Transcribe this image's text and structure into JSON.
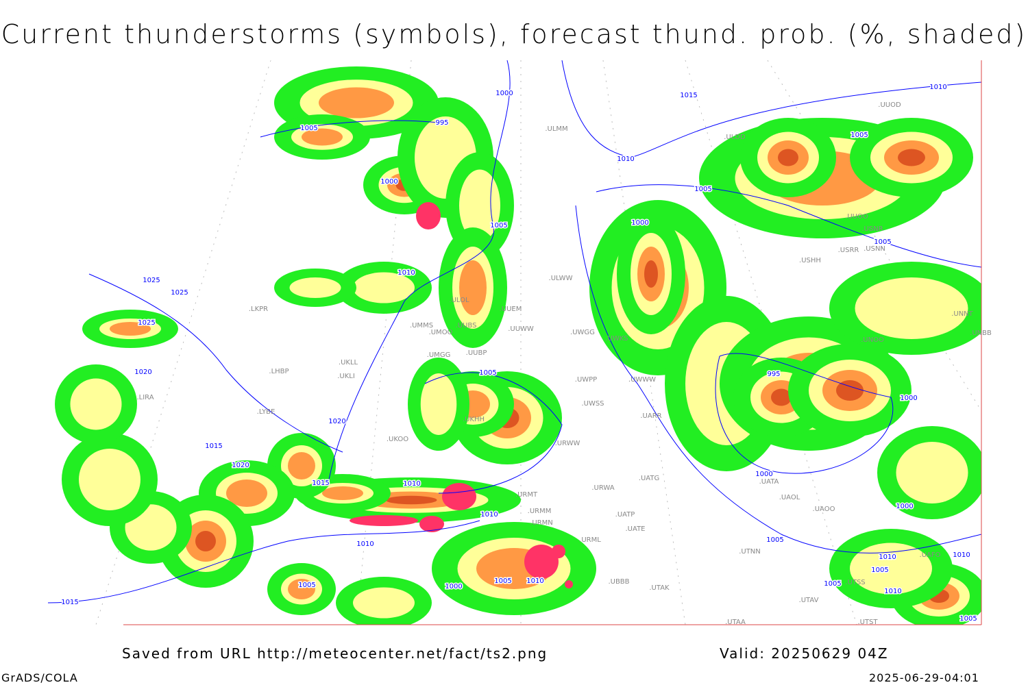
{
  "title": "Current thunderstorms (symbols), forecast thund. prob. (%, shaded)",
  "footer": {
    "source": "Saved from URL http://meteocenter.net/fact/ts2.png",
    "valid": "Valid: 20250629 04Z",
    "software": "GrADS/COLA",
    "timestamp": "2025-06-29-04:01"
  },
  "colors": {
    "prob_low": "#22ee22",
    "prob_mid": "#ffff99",
    "prob_high": "#ff9944",
    "prob_very_high": "#dd5522",
    "current_thunderstorm": "#ff3366",
    "isobar": "#0000ff",
    "coastline": "#999999"
  },
  "isobar_labels": [
    "1000",
    "1015",
    "1010",
    "995",
    "1005",
    "1010",
    "1005",
    "1000",
    "1005",
    "1000",
    "1005",
    "1005",
    "1010",
    "1025",
    "1025",
    "1025",
    "1020",
    "1005",
    "995",
    "1000",
    "1020",
    "1015",
    "1020",
    "1000",
    "1015",
    "1010",
    "1000",
    "1010",
    "1005",
    "1010",
    "1010",
    "1010",
    "1005",
    "1005",
    "1000",
    "1005",
    "1010",
    "1005",
    "1010",
    "1015",
    "1005"
  ],
  "stations": [
    "ULMM",
    "ULDD",
    "UUOD",
    "ULOL",
    "UUEM",
    "UUWW",
    "UMMS",
    "UMOO",
    "UUBS",
    "UMGG",
    "UUBP",
    "UWGG",
    "UWPP",
    "UWKS",
    "UWWW",
    "UWSS",
    "UARR",
    "URWW",
    "URWA",
    "UATG",
    "UATA",
    "UAOL",
    "UAOO",
    "UATP",
    "UATE",
    "URML",
    "UTNN",
    "UBBB",
    "UTAK",
    "UTAA",
    "URMT",
    "URMM",
    "URMN",
    "LKPR",
    "UKLL",
    "UKLI",
    "LHBP",
    "LIRA",
    "LYBE",
    "UKOO",
    "UKHH",
    "ULWW",
    "UUOO",
    "USNR",
    "USRR",
    "USNN",
    "USHH",
    "UNNT",
    "UNBB",
    "UNOO",
    "UTSS",
    "UTAV",
    "UTST",
    "UAFO"
  ]
}
